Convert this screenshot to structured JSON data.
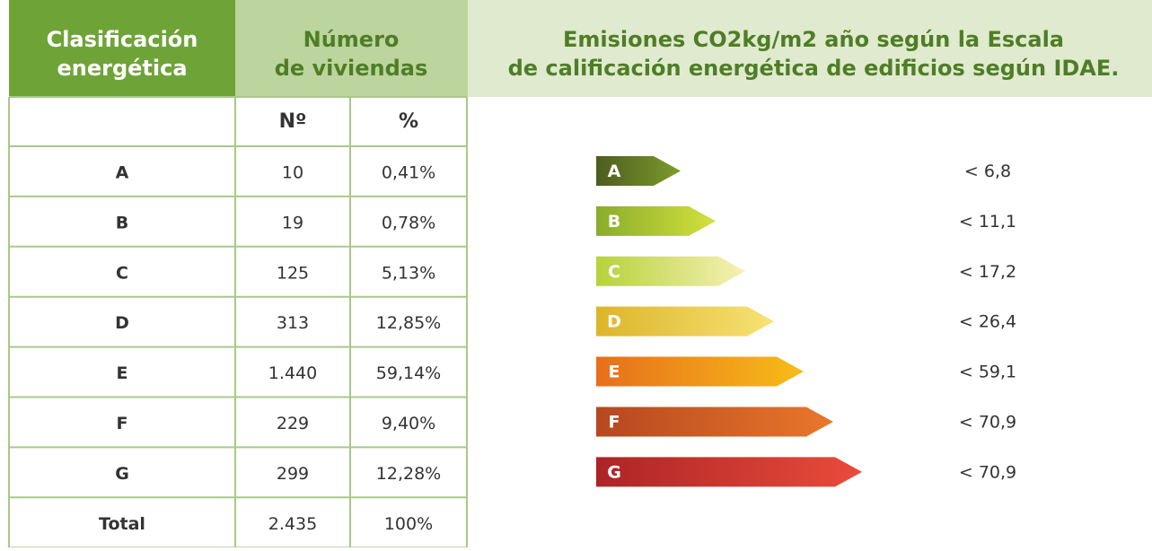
{
  "header": {
    "classification": [
      "Clasificación",
      "energética"
    ],
    "dwellings": [
      "Número",
      "de viviendas"
    ],
    "emissions": [
      "Emisiones CO2kg/m2 año según la Escala",
      "de calificación energética de edificios según IDAE."
    ]
  },
  "table": {
    "subheaders": [
      "Nº",
      "%"
    ],
    "rows": [
      [
        "A",
        "10",
        "0,41%"
      ],
      [
        "B",
        "19",
        "0,78%"
      ],
      [
        "C",
        "125",
        "5,13%"
      ],
      [
        "D",
        "313",
        "12,85%"
      ],
      [
        "E",
        "1.440",
        "59,14%"
      ],
      [
        "F",
        "229",
        "9,40%"
      ],
      [
        "G",
        "299",
        "12,28%"
      ],
      [
        "Total",
        "2.435",
        "100%"
      ]
    ]
  },
  "scale": {
    "bars": [
      {
        "letter": "A",
        "limit": "< 6,8",
        "colors": [
          "#4b5d20",
          "#7f9b2b"
        ]
      },
      {
        "letter": "B",
        "limit": "< 11,1",
        "colors": [
          "#8aac2b",
          "#d3e13c"
        ]
      },
      {
        "letter": "C",
        "limit": "< 17,2",
        "colors": [
          "#b7d23c",
          "#f6f1b4"
        ]
      },
      {
        "letter": "D",
        "limit": "< 26,4",
        "colors": [
          "#ddb52a",
          "#f7e274"
        ]
      },
      {
        "letter": "E",
        "limit": "< 59,1",
        "colors": [
          "#e76f1c",
          "#f7bd18"
        ]
      },
      {
        "letter": "F",
        "limit": "< 70,9",
        "colors": [
          "#b6471f",
          "#ea772b"
        ]
      },
      {
        "letter": "G",
        "limit": "< 70,9",
        "colors": [
          "#ad2426",
          "#ea4b3b"
        ]
      }
    ]
  }
}
